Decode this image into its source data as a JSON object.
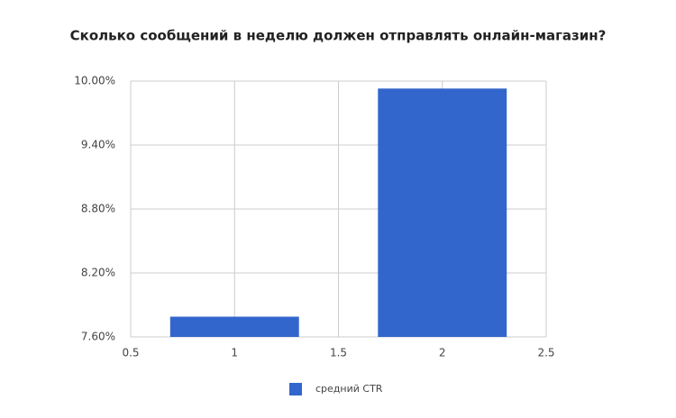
{
  "chart_data": {
    "type": "bar",
    "title": "Сколько сообщений в неделю должен отправлять онлайн-магазин?",
    "x": [
      1,
      2
    ],
    "series": [
      {
        "name": "средний CTR",
        "color": "#3366cc",
        "values": [
          7.79,
          9.93
        ]
      }
    ],
    "xlim": [
      0.5,
      2.5
    ],
    "xticks": [
      0.5,
      1,
      1.5,
      2,
      2.5
    ],
    "ylim": [
      7.6,
      10.0
    ],
    "yticks": [
      {
        "value": 7.6,
        "label": "7.60%"
      },
      {
        "value": 8.2,
        "label": "8.20%"
      },
      {
        "value": 8.8,
        "label": "8.80%"
      },
      {
        "value": 9.4,
        "label": "9.40%"
      },
      {
        "value": 10.0,
        "label": "10.00%"
      }
    ],
    "grid": true,
    "legend": "bottom"
  }
}
